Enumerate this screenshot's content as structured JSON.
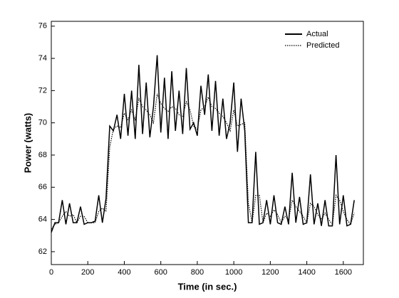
{
  "chart_data": {
    "type": "line",
    "x_label": "Time (in sec.)",
    "y_label": "Power (watts)",
    "xlim": [
      0,
      1710
    ],
    "ylim": [
      61.2,
      76.3
    ],
    "xticks": [
      0,
      200,
      400,
      600,
      800,
      1000,
      1200,
      1400,
      1600
    ],
    "yticks": [
      62,
      64,
      66,
      68,
      70,
      72,
      74,
      76
    ],
    "legend": "upper right",
    "x": [
      0,
      20,
      40,
      60,
      80,
      100,
      120,
      140,
      160,
      180,
      200,
      220,
      240,
      260,
      280,
      300,
      320,
      340,
      360,
      380,
      400,
      420,
      440,
      460,
      480,
      500,
      520,
      540,
      560,
      580,
      600,
      620,
      640,
      660,
      680,
      700,
      720,
      740,
      760,
      780,
      800,
      820,
      840,
      860,
      880,
      900,
      920,
      940,
      960,
      980,
      1000,
      1020,
      1040,
      1060,
      1080,
      1100,
      1120,
      1140,
      1160,
      1180,
      1200,
      1220,
      1240,
      1260,
      1280,
      1300,
      1320,
      1340,
      1360,
      1380,
      1400,
      1420,
      1440,
      1460,
      1480,
      1500,
      1520,
      1540,
      1560,
      1580,
      1600,
      1620,
      1640,
      1660
    ],
    "series": [
      {
        "name": "Actual",
        "color": "#000000",
        "dash": "solid",
        "values": [
          63.2,
          63.8,
          63.8,
          65.2,
          63.7,
          65.0,
          63.8,
          63.8,
          64.8,
          63.7,
          63.8,
          63.8,
          63.9,
          65.5,
          63.8,
          65.3,
          69.8,
          69.5,
          70.5,
          69.0,
          71.8,
          69.2,
          72.0,
          69.0,
          73.6,
          69.3,
          72.5,
          69.1,
          71.0,
          74.2,
          69.4,
          72.8,
          69.0,
          73.2,
          69.5,
          72.0,
          69.3,
          73.4,
          69.6,
          70.0,
          69.2,
          72.3,
          70.5,
          73.0,
          69.5,
          72.6,
          69.2,
          71.5,
          69.0,
          70.0,
          72.5,
          68.2,
          71.5,
          69.5,
          63.8,
          63.8,
          68.2,
          63.7,
          63.8,
          65.2,
          63.7,
          65.5,
          63.8,
          63.7,
          64.8,
          63.7,
          66.9,
          63.8,
          65.4,
          63.7,
          63.8,
          66.8,
          63.7,
          65.0,
          63.6,
          65.2,
          63.6,
          63.6,
          68.0,
          63.7,
          65.5,
          63.6,
          63.7,
          65.2
        ]
      },
      {
        "name": "Predicted",
        "color": "#000000",
        "dash": "dotted",
        "values": [
          63.4,
          63.7,
          63.8,
          64.2,
          64.5,
          64.2,
          64.3,
          63.8,
          64.2,
          64.2,
          63.8,
          63.8,
          63.8,
          64.5,
          64.7,
          64.5,
          68.5,
          69.6,
          69.8,
          69.7,
          70.6,
          70.2,
          70.8,
          70.2,
          71.5,
          71.0,
          70.8,
          70.5,
          70.0,
          71.8,
          71.2,
          70.9,
          70.7,
          71.0,
          70.9,
          70.5,
          70.4,
          71.3,
          70.8,
          69.8,
          69.6,
          70.8,
          71.0,
          71.6,
          71.0,
          70.9,
          70.6,
          70.4,
          70.0,
          69.5,
          70.8,
          69.8,
          69.9,
          70.0,
          65.0,
          63.8,
          65.5,
          65.5,
          63.8,
          64.4,
          64.2,
          64.6,
          64.3,
          63.8,
          64.2,
          64.0,
          65.2,
          64.8,
          64.5,
          64.2,
          63.8,
          65.0,
          64.8,
          64.3,
          64.0,
          64.4,
          64.0,
          63.7,
          65.5,
          65.2,
          64.5,
          64.0,
          63.7,
          64.4
        ]
      }
    ]
  }
}
